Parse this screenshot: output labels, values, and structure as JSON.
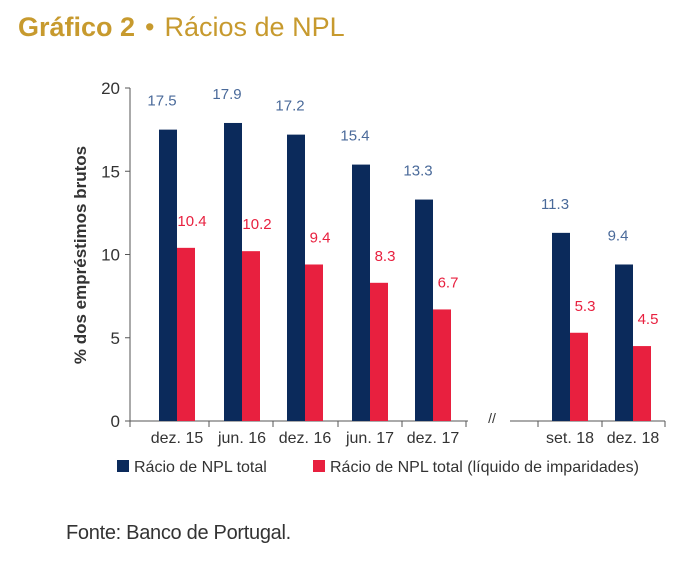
{
  "title": {
    "number": "Gráfico 2",
    "separator": "•",
    "text": "Rácios de NPL"
  },
  "source": "Fonte: Banco de Portugal.",
  "axis_break_symbol": "//",
  "colors": {
    "title": "#C79A2E",
    "npl_total": "#0B2A5B",
    "npl_net": "#E8203F",
    "label_total": "#4A6A9A",
    "label_net": "#E8203F"
  },
  "chart_data": {
    "type": "bar",
    "title": "Rácios de NPL",
    "xlabel": "",
    "ylabel": "% dos empréstimos brutos",
    "ylim": [
      0,
      20
    ],
    "yticks": [
      0,
      5,
      10,
      15,
      20
    ],
    "grid": false,
    "legend_position": "bottom",
    "categories": [
      "dez. 15",
      "jun. 16",
      "dez. 16",
      "jun. 17",
      "dez. 17",
      "set. 18",
      "dez. 18"
    ],
    "axis_break_after": "dez. 17",
    "series": [
      {
        "name": "Rácio de NPL total",
        "values": [
          17.5,
          17.9,
          17.2,
          15.4,
          13.3,
          11.3,
          9.4
        ]
      },
      {
        "name": "Rácio de NPL total (líquido de imparidades)",
        "values": [
          10.4,
          10.2,
          9.4,
          8.3,
          6.7,
          5.3,
          4.5
        ]
      }
    ]
  }
}
